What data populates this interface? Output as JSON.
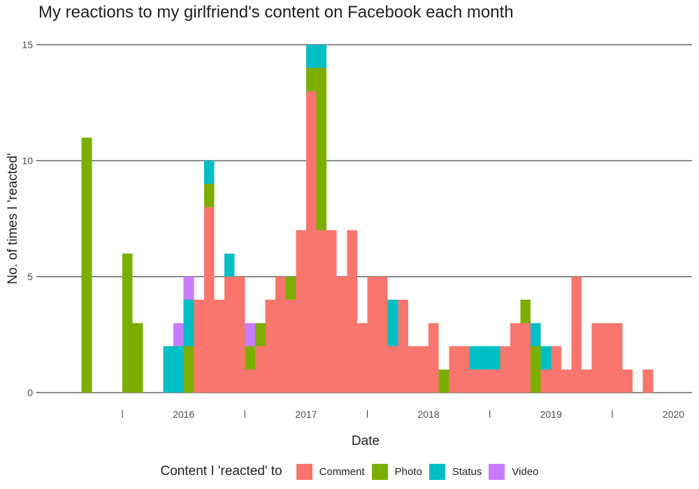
{
  "chart_data": {
    "type": "bar",
    "stacked": true,
    "title": "My reactions to my girlfriend's content on Facebook each month",
    "xlabel": "Date",
    "ylabel": "No. of times I 'reacted'",
    "ylim": [
      0,
      15
    ],
    "y_ticks": [
      "0",
      "5",
      "10",
      "15"
    ],
    "x_ticks": [
      "2016",
      "2017",
      "2018",
      "2019",
      "2020"
    ],
    "grid": "horizontal major lines",
    "legend": {
      "title": "Content I 'reacted' to",
      "position": "bottom"
    },
    "categories": [
      "2015-07",
      "2015-08",
      "2015-09",
      "2015-10",
      "2015-11",
      "2015-12",
      "2016-01",
      "2016-02",
      "2016-03",
      "2016-04",
      "2016-05",
      "2016-06",
      "2016-07",
      "2016-08",
      "2016-09",
      "2016-10",
      "2016-11",
      "2016-12",
      "2017-01",
      "2017-02",
      "2017-03",
      "2017-04",
      "2017-05",
      "2017-06",
      "2017-07",
      "2017-08",
      "2017-09",
      "2017-10",
      "2017-11",
      "2017-12",
      "2018-01",
      "2018-02",
      "2018-03",
      "2018-04",
      "2018-05",
      "2018-06",
      "2018-07",
      "2018-08",
      "2018-09",
      "2018-10",
      "2018-11",
      "2018-12",
      "2019-01",
      "2019-02",
      "2019-03",
      "2019-04",
      "2019-05",
      "2019-06",
      "2019-07",
      "2019-08",
      "2019-09",
      "2019-10",
      "2019-11",
      "2019-12",
      "2020-01",
      "2020-02",
      "2020-03",
      "2020-04"
    ],
    "series": [
      {
        "name": "Video",
        "color": "#C77CFF",
        "values": [
          0,
          0,
          0,
          0,
          0,
          0,
          0,
          0,
          0,
          0,
          0,
          1,
          1,
          0,
          0,
          0,
          0,
          0,
          1,
          0,
          0,
          0,
          0,
          0,
          0,
          0,
          0,
          0,
          0,
          0,
          0,
          0,
          0,
          0,
          0,
          0,
          0,
          0,
          0,
          0,
          0,
          0,
          0,
          0,
          0,
          0,
          0,
          0,
          0,
          0,
          0,
          0,
          0,
          0,
          0,
          0,
          0,
          0
        ]
      },
      {
        "name": "Status",
        "color": "#00BFC4",
        "values": [
          0,
          0,
          0,
          0,
          0,
          0,
          0,
          0,
          0,
          0,
          2,
          2,
          2,
          0,
          1,
          0,
          1,
          0,
          0,
          0,
          0,
          0,
          0,
          0,
          1,
          1,
          0,
          0,
          0,
          0,
          0,
          0,
          2,
          0,
          0,
          0,
          0,
          0,
          0,
          0,
          1,
          1,
          1,
          0,
          0,
          0,
          1,
          1,
          0,
          0,
          0,
          0,
          0,
          0,
          0,
          0,
          0,
          0
        ]
      },
      {
        "name": "Photo",
        "color": "#7CAE00",
        "values": [
          0,
          0,
          11,
          0,
          0,
          0,
          6,
          3,
          0,
          0,
          0,
          0,
          2,
          0,
          1,
          0,
          0,
          0,
          1,
          1,
          0,
          0,
          1,
          0,
          1,
          7,
          0,
          0,
          0,
          0,
          0,
          0,
          0,
          0,
          0,
          0,
          0,
          1,
          0,
          0,
          0,
          0,
          0,
          0,
          0,
          1,
          2,
          0,
          0,
          0,
          0,
          0,
          0,
          0,
          0,
          0,
          0,
          0
        ]
      },
      {
        "name": "Comment",
        "color": "#F8766D",
        "values": [
          0,
          0,
          0,
          0,
          0,
          0,
          0,
          0,
          0,
          0,
          0,
          0,
          0,
          4,
          8,
          4,
          5,
          5,
          1,
          2,
          4,
          5,
          4,
          7,
          13,
          7,
          7,
          5,
          7,
          3,
          5,
          5,
          2,
          4,
          2,
          2,
          3,
          0,
          2,
          2,
          1,
          1,
          1,
          2,
          3,
          3,
          0,
          1,
          2,
          1,
          5,
          1,
          3,
          3,
          3,
          1,
          0,
          1
        ]
      }
    ]
  }
}
